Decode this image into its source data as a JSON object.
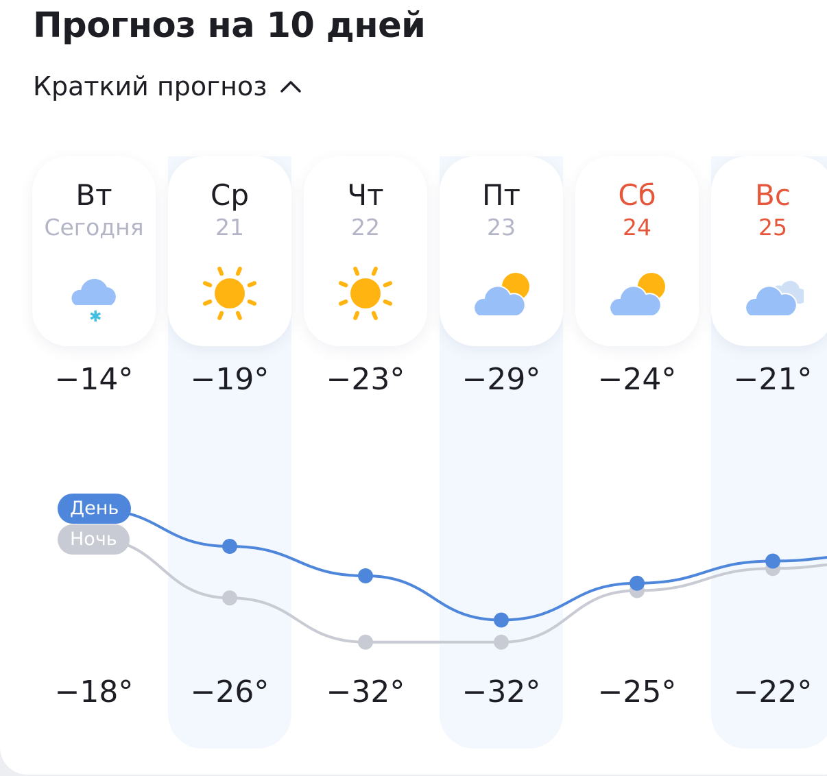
{
  "header": {
    "title": "Прогноз на 10 дней",
    "toggle_label": "Краткий прогноз"
  },
  "colors": {
    "day_line": "#4d86db",
    "night_line": "#c8cbd3",
    "weekend": "#e5563a",
    "highlight_column": "#f3f8fe"
  },
  "legend": {
    "day": "День",
    "night": "Ночь"
  },
  "days": [
    {
      "dow": "Вт",
      "date": "Сегодня",
      "icon": "cloud-snow-icon",
      "day_temp": "−14°",
      "night_temp": "−18°",
      "weekend": false,
      "day": -14,
      "night": -18
    },
    {
      "dow": "Ср",
      "date": "21",
      "icon": "sun-icon",
      "day_temp": "−19°",
      "night_temp": "−26°",
      "weekend": false,
      "day": -19,
      "night": -26
    },
    {
      "dow": "Чт",
      "date": "22",
      "icon": "sun-icon",
      "day_temp": "−23°",
      "night_temp": "−32°",
      "weekend": false,
      "day": -23,
      "night": -32
    },
    {
      "dow": "Пт",
      "date": "23",
      "icon": "partly-cloudy-icon",
      "day_temp": "−29°",
      "night_temp": "−32°",
      "weekend": false,
      "day": -29,
      "night": -32
    },
    {
      "dow": "Сб",
      "date": "24",
      "icon": "partly-cloudy-icon",
      "day_temp": "−24°",
      "night_temp": "−25°",
      "weekend": true,
      "day": -24,
      "night": -25
    },
    {
      "dow": "Вс",
      "date": "25",
      "icon": "cloudy-icon",
      "day_temp": "−21°",
      "night_temp": "−22°",
      "weekend": true,
      "day": -21,
      "night": -22
    }
  ]
}
